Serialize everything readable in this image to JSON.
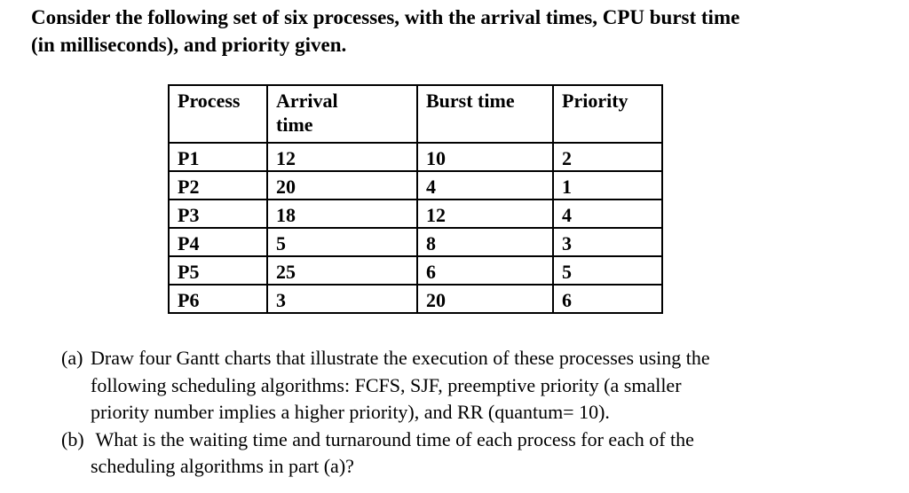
{
  "intro": {
    "text": "Consider the following set of six processes, with the arrival times, CPU burst time\n(in milliseconds), and priority given."
  },
  "table": {
    "headers": [
      "Process",
      "Arrival time",
      "Burst time",
      "Priority"
    ],
    "rows": [
      [
        "P1",
        "12",
        "10",
        "2"
      ],
      [
        "P2",
        "20",
        "4",
        "1"
      ],
      [
        "P3",
        "18",
        "12",
        "4"
      ],
      [
        "P4",
        "5",
        "8",
        "3"
      ],
      [
        "P5",
        "25",
        "6",
        "5"
      ],
      [
        "P6",
        "3",
        "20",
        "6"
      ]
    ]
  },
  "questions": [
    {
      "label": "(a)",
      "text": "Draw four Gantt charts that illustrate the execution of these processes using the\nfollowing scheduling algorithms: FCFS, SJF, preemptive priority (a smaller\npriority number implies a higher priority), and RR (quantum= 10)."
    },
    {
      "label": "(b)",
      "text": " What is the waiting time and turnaround time of each process for each of the\nscheduling algorithms in part (a)?"
    }
  ]
}
